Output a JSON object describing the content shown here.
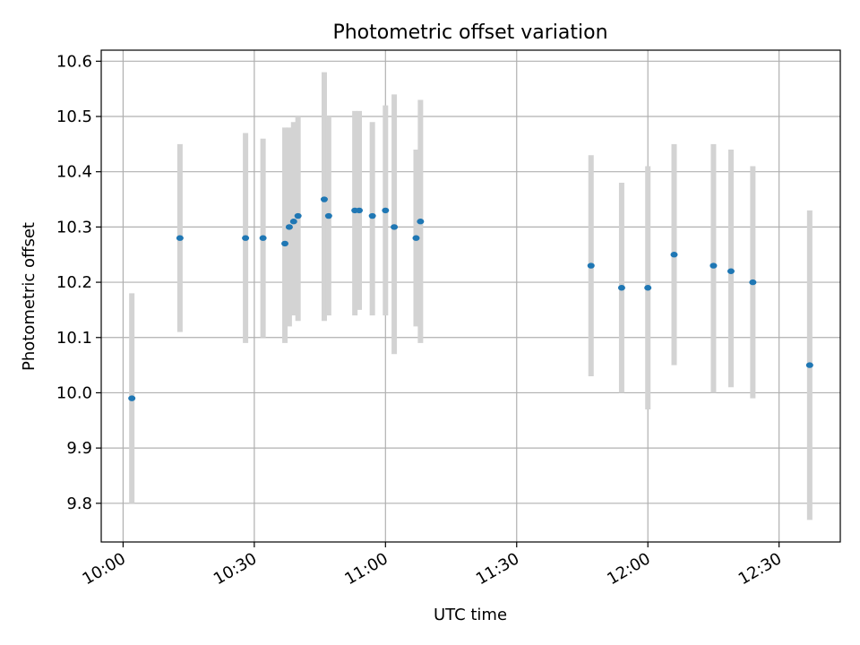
{
  "chart_data": {
    "type": "scatter",
    "title": "Photometric offset variation",
    "xlabel": "UTC time",
    "ylabel": "Photometric offset",
    "grid": true,
    "x_tick_labels": [
      "10:00",
      "10:30",
      "11:00",
      "11:30",
      "12:00",
      "12:30"
    ],
    "x_tick_values": [
      "10:00",
      "10:30",
      "11:00",
      "11:30",
      "12:00",
      "12:30"
    ],
    "y_ticks": [
      9.8,
      9.9,
      10.0,
      10.1,
      10.2,
      10.3,
      10.4,
      10.5,
      10.6
    ],
    "y_tick_labels": [
      "9.8",
      "9.9",
      "10.0",
      "10.1",
      "10.2",
      "10.3",
      "10.4",
      "10.5",
      "10.6"
    ],
    "xlim": [
      "09:55",
      "12:44"
    ],
    "ylim": [
      9.73,
      10.62
    ],
    "colors": {
      "marker": "#1f77b4",
      "errorbar": "#d3d3d3",
      "grid": "#b0b0b0"
    },
    "series": [
      {
        "points": [
          {
            "x": "10:02",
            "y": 9.99,
            "lo": 9.8,
            "hi": 10.18
          },
          {
            "x": "10:13",
            "y": 10.28,
            "lo": 10.11,
            "hi": 10.45
          },
          {
            "x": "10:28",
            "y": 10.28,
            "lo": 10.09,
            "hi": 10.47
          },
          {
            "x": "10:32",
            "y": 10.28,
            "lo": 10.1,
            "hi": 10.46
          },
          {
            "x": "10:37",
            "y": 10.27,
            "lo": 10.09,
            "hi": 10.48
          },
          {
            "x": "10:38",
            "y": 10.3,
            "lo": 10.12,
            "hi": 10.48
          },
          {
            "x": "10:39",
            "y": 10.31,
            "lo": 10.14,
            "hi": 10.49
          },
          {
            "x": "10:40",
            "y": 10.32,
            "lo": 10.13,
            "hi": 10.5
          },
          {
            "x": "10:46",
            "y": 10.35,
            "lo": 10.13,
            "hi": 10.58
          },
          {
            "x": "10:47",
            "y": 10.32,
            "lo": 10.14,
            "hi": 10.5
          },
          {
            "x": "10:53",
            "y": 10.33,
            "lo": 10.14,
            "hi": 10.51
          },
          {
            "x": "10:54",
            "y": 10.33,
            "lo": 10.15,
            "hi": 10.51
          },
          {
            "x": "10:57",
            "y": 10.32,
            "lo": 10.14,
            "hi": 10.49
          },
          {
            "x": "11:00",
            "y": 10.33,
            "lo": 10.14,
            "hi": 10.52
          },
          {
            "x": "11:02",
            "y": 10.3,
            "lo": 10.07,
            "hi": 10.54
          },
          {
            "x": "11:07",
            "y": 10.28,
            "lo": 10.12,
            "hi": 10.44
          },
          {
            "x": "11:08",
            "y": 10.31,
            "lo": 10.09,
            "hi": 10.53
          },
          {
            "x": "11:47",
            "y": 10.23,
            "lo": 10.03,
            "hi": 10.43
          },
          {
            "x": "11:54",
            "y": 10.19,
            "lo": 10.0,
            "hi": 10.38
          },
          {
            "x": "12:00",
            "y": 10.19,
            "lo": 9.97,
            "hi": 10.41
          },
          {
            "x": "12:06",
            "y": 10.25,
            "lo": 10.05,
            "hi": 10.45
          },
          {
            "x": "12:15",
            "y": 10.23,
            "lo": 10.0,
            "hi": 10.45
          },
          {
            "x": "12:19",
            "y": 10.22,
            "lo": 10.01,
            "hi": 10.44
          },
          {
            "x": "12:24",
            "y": 10.2,
            "lo": 9.99,
            "hi": 10.41
          },
          {
            "x": "12:37",
            "y": 10.05,
            "lo": 9.77,
            "hi": 10.33
          }
        ]
      }
    ]
  }
}
